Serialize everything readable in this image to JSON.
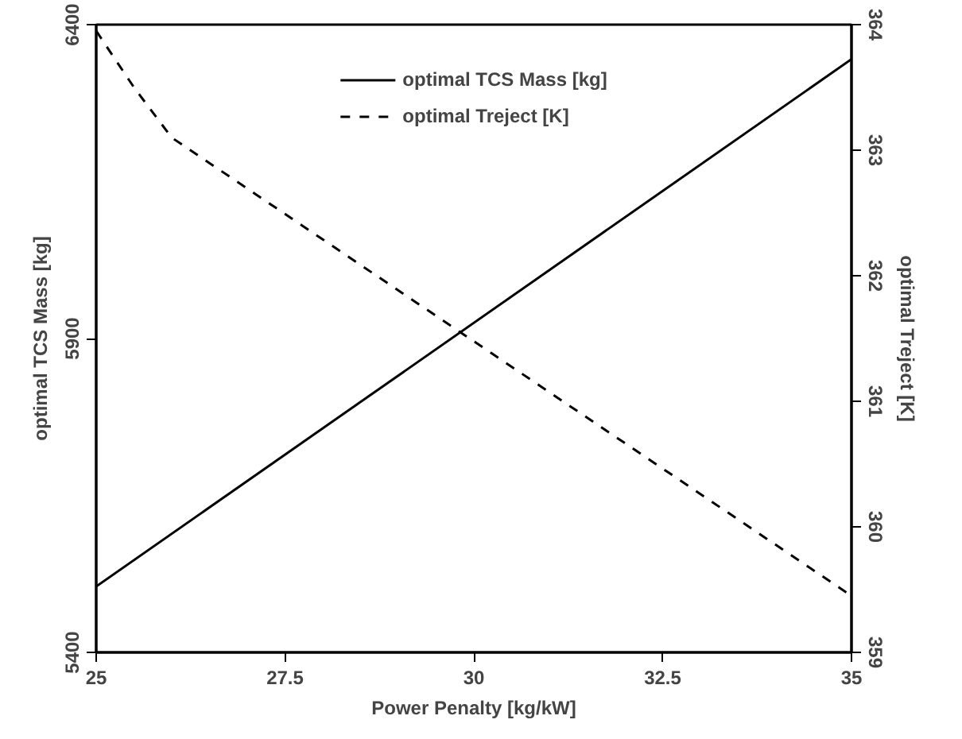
{
  "chart_data": {
    "type": "line",
    "xlabel": "Power Penalty [kg/kW]",
    "ylabel": "optimal TCS Mass [kg]",
    "y2label": "optimal Treject [K]",
    "xlim": [
      25,
      35
    ],
    "xticks": [
      25,
      27.5,
      30,
      32.5,
      35
    ],
    "ylim": [
      5400,
      6400
    ],
    "yticks": [
      5400,
      5900,
      6400
    ],
    "y2lim": [
      359,
      364
    ],
    "y2ticks": [
      359,
      360,
      361,
      362,
      363,
      364
    ],
    "grid": false,
    "legend": "top",
    "marker": "none",
    "series": [
      {
        "name": "optimal TCS Mass [kg]",
        "color": "#000000",
        "line_style": "solid",
        "x": [
          25,
          35
        ],
        "values": [
          5505,
          6345
        ]
      },
      {
        "name": "optimal Treject [K]",
        "color": "#000000",
        "line_style": "dashed",
        "axis": "y2",
        "x": [
          25,
          25.5,
          26,
          35
        ],
        "values": [
          363.95,
          363.5,
          363.1,
          359.45
        ]
      }
    ]
  }
}
